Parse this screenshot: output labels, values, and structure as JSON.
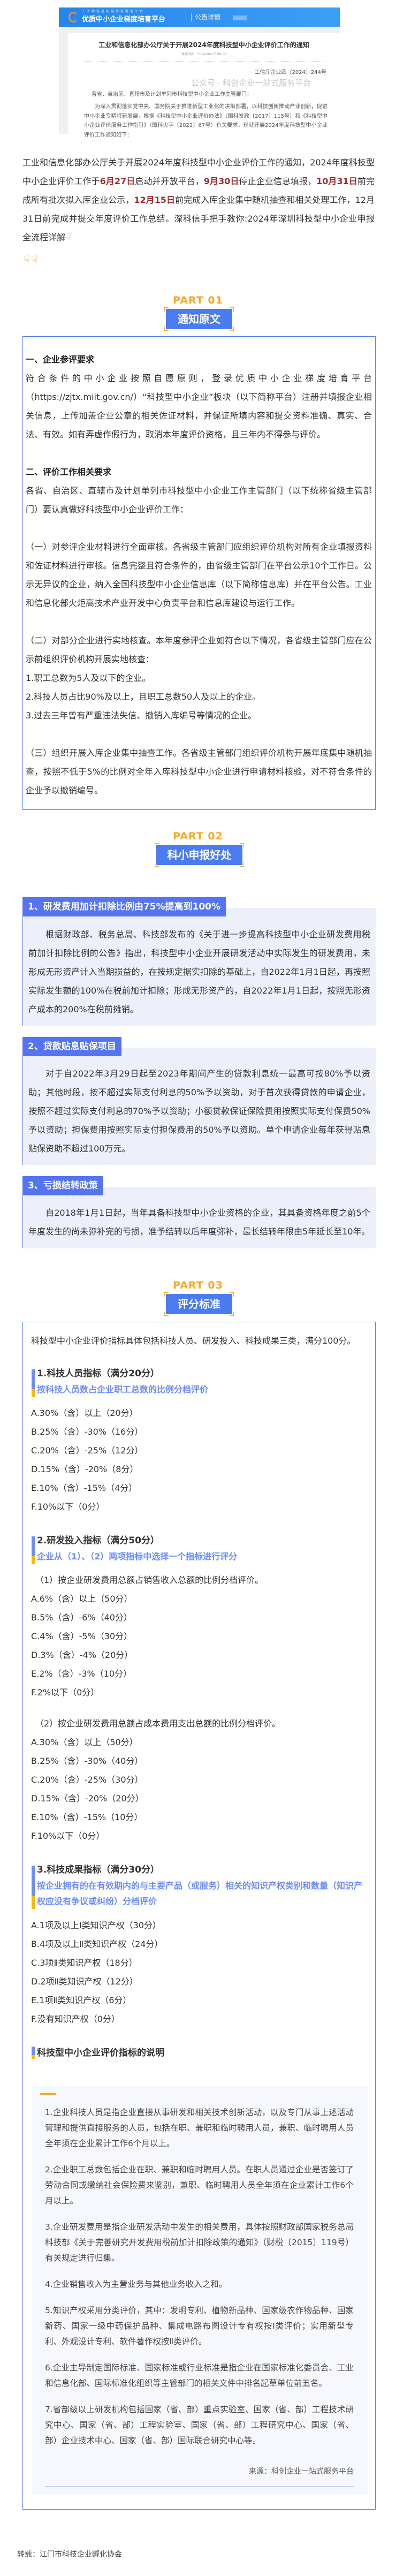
{
  "screenshot": {
    "platform_sub": "工业和信息化部政务服务平台",
    "platform_name": "优质中小企业梯度培育平台",
    "tab": "公告详情",
    "title": "工业和信息化部办公厅关于开展2024年度科技型中小企业评价工作的通知",
    "date": "发布时间：2024-06-27 09:08",
    "doc_no": "工信厅企业函〔2024〕244号",
    "salutation": "各省、自治区、直辖市及计划单列市科技型中小企业工作主管部门：",
    "body": "为深入贯彻落实党中央、国务院关于推进新型工业化的决策部署，以科技创新推动产业创新，促进中小企业专精特新发展，根据《科技型中小企业评价办法》（国科发政〔2017〕115号）和《科技型中小企业评价服务工作指引》（国科火字〔2022〕67号）有关要求，现就开展2024年度科技型中小企业评价工作通知如下：",
    "watermark": "公众号 · 科创企业一站式服务平台"
  },
  "intro": {
    "parts": [
      "工业和信息化部办公厅关于开展2024年度科技型中小企业评价工作的通知，2024年度科技型中小企业评价工作于",
      "6月27日",
      "启动并开放平台，",
      "9月30日",
      "停止企业信息填报，",
      "10月31日",
      "前完成所有批次拟入库企业公示，",
      "12月15日",
      "前完成入库企业集中随机抽查和相关处理工作，12月31日前完成并提交年度评价工作总结。深科信手把手教你:2024年深圳科技型中小企业申报全流程详解"
    ],
    "highlight_color": "#9b2b2b",
    "hand_icon": "pointing-down-hand"
  },
  "colors": {
    "accent_blue": "#4a7cf0",
    "part_orange": "#f7a823",
    "section_blue": "#5474f2",
    "panel_bg": "#edf0fb",
    "subtitle_blue": "#6b8cff"
  },
  "part1": {
    "part": "PART 01",
    "title": "通知原文",
    "h1": "一、企业参评要求",
    "p1": "符合条件的中小企业按照自愿原则，登录优质中小企业梯度培育平台（https://zjtx.miit.gov.cn/）“科技型中小企业”板块（以下简称平台）注册并填报企业相关信息，上传加盖企业公章的相关佐证材料，并保证所填内容和提交资料准确、真实、合法、有效。如有弄虚作假行为，取消本年度评价资格，且三年内不得参与评价。",
    "h2": "二、评价工作相关要求",
    "p2": "各省、自治区、直辖市及计划单列市科技型中小企业工作主管部门（以下统称省级主管部门）要认真做好科技型中小企业评价工作：",
    "p3": "（一）对参评企业材料进行全面审核。各省级主管部门应组织评价机构对所有企业填报资料和佐证材料进行审核。信息完整且符合条件的，由省级主管部门在平台公示10个工作日。公示无异议的企业，纳入全国科技型中小企业信息库（以下简称信息库）并在平台公告。工业和信息化部火炬高技术产业开发中心负责平台和信息库建设与运行工作。",
    "p4": "（二）对部分企业进行实地核查。本年度参评企业如符合以下情况，各省级主管部门应在公示前组织评价机构开展实地核查：",
    "list": [
      "1.职工总数为5人及以下的企业。",
      "2.科技人员占比90%及以上，且职工总数50人及以上的企业。",
      "3.过去三年曾有严重违法失信、撤销入库编号等情况的企业。"
    ],
    "p5": "（三）组织开展入库企业集中抽查工作。各省级主管部门组织评价机构开展年底集中随机抽查，按照不低于5%的比例对全年入库科技型中小企业进行申请材料核验，对不符合条件的企业予以撤销编号。"
  },
  "part2": {
    "part": "PART 02",
    "title": "科小申报好处",
    "sections": [
      {
        "title": "1、研发费用加计扣除比例由75%提高到100%",
        "text": "根据财政部、税务总局、科技部发布的《关于进一步提高科技型中小企业研发费用税前加计扣除比例的公告》指出，科技型中小企业开展研发活动中实际发生的研发费用，未形成无形资产计入当期损益的，在按规定据实扣除的基础上，自2022年1月1日起，再按照实际发生额的100%在税前加计扣除；形成无形资产的，自2022年1月1日起，按照无形资产成本的200%在税前摊销。"
      },
      {
        "title": "2、贷款贴息贴保项目",
        "text": "对于自2022年3月29日起至2023年期间产生的贷款利息统一最高可按80%予以资助；其他时段，按不超过实际支付利息的50%予以资助，对于首次获得贷款的申请企业，按照不超过实际支付利息的70%予以资助；小额贷款保证保险费用按照实际支付保费50%予以资助；担保费用按照实际支付担保费用的50%予以资助。单个申请企业每年获得贴息贴保资助不超过100万元。"
      },
      {
        "title": "3、亏损结转政策",
        "text": "自2018年1月1日起，当年具备科技型中小企业资格的企业，其具备资格年度之前5个年度发生的尚未弥补完的亏损，准予结转以后年度弥补，最长结转年限由5年延长至10年。"
      }
    ]
  },
  "part3": {
    "part": "PART 03",
    "title": "评分标准",
    "intro": "科技型中小企业评价指标具体包括科技人员、研发投入、科技成果三类，满分100分。",
    "ind1": {
      "title": "1.科技人员指标（满分20分）",
      "subtitle": "按科技人员数占企业职工总数的比例分档评价",
      "items": [
        "A.30%（含）以上（20分）",
        "B.25%（含）-30%（16分）",
        "C.20%（含）-25%（12分）",
        "D.15%（含）-20%（8分）",
        "E.10%（含）-15%（4分）",
        "F.10%以下（0分）"
      ]
    },
    "ind2": {
      "title": "2.研发投入指标（满分50分）",
      "subtitle": "企业从（1）、（2）两项指标中选择一个指标进行评分",
      "sub1": "（1）按企业研发费用总额占销售收入总额的比例分档评价。",
      "items1": [
        "A.6%（含）以上（50分）",
        "B.5%（含）-6%（40分）",
        "C.4%（含）-5%（30分）",
        "D.3%（含）-4%（20分）",
        "E.2%（含）-3%（10分）",
        "F.2%以下（0分）"
      ],
      "sub2": "（2）按企业研发费用总额占成本费用支出总额的比例分档评价。",
      "items2": [
        "A.30%（含）以上（50分）",
        "B.25%（含）-30%（40分）",
        "C.20%（含）-25%（30分）",
        "D.15%（含）-20%（20分）",
        "E.10%（含）-15%（10分）",
        "F.10%以下（0分）"
      ]
    },
    "ind3": {
      "title": "3.科技成果指标（满分30分）",
      "subtitle": "按企业拥有的在有效期内的与主要产品（或服务）相关的知识产权类别和数量（知识产权应没有争议或纠纷）分档评价",
      "items": [
        "A.1项及以上Ⅰ类知识产权（30分）",
        "B.4项及以上Ⅱ类知识产权（24分）",
        "C.3项Ⅱ类知识产权（18分）",
        "D.2项Ⅱ类知识产权（12分）",
        "E.1项Ⅱ类知识产权（6分）",
        "F.没有知识产权（0分）"
      ]
    },
    "notes_title": "科技型中小企业评价指标的说明",
    "notes": [
      "1.企业科技人员是指企业直接从事研发和相关技术创新活动，以及专门从事上述活动管理和提供直接服务的人员，包括在职、兼职和临时聘用人员，兼职、临时聘用人员全年须在企业累计工作6个月以上。",
      "2.企业职工总数包括企业在职、兼职和临时聘用人员。在职人员通过企业是否签订了劳动合同或缴纳社会保险费来鉴别，兼职、临时聘用人员全年须在企业累计工作6个月以上。",
      "3.企业研发费用是指企业研发活动中发生的相关费用，具体按照财政部国家税务总局科技部《关于完善研究开发费用税前加计扣除政策的通知》（财税〔2015〕119号）有关规定进行归集。",
      "4.企业销售收入为主营业务与其他业务收入之和。",
      "5.知识产权采用分类评价，其中：发明专利、植物新品种、国家级农作物品种、国家新药、国家一级中药保护品种、集成电路布图设计专有权按Ⅰ类评价；实用新型专利、外观设计专利、软件著作权按Ⅱ类评价。",
      "6.企业主导制定国际标准、国家标准或行业标准是指企业在国家标准化委员会、工业和信息化部、国际标准化组织等主管部门的相关文件中排名起草单位前五名。",
      "7.省部级以上研发机构包括国家（省、部）重点实验室、国家（省、部）工程技术研究中心、国家（省、部）工程实验室、国家（省、部）工程研究中心、国家（省、部）企业技术中心、国家（省、部）国际联合研究中心等。"
    ],
    "source": "来源：科创企业一站式服务平台"
  },
  "footer": "转载：江门市科技企业孵化协会"
}
